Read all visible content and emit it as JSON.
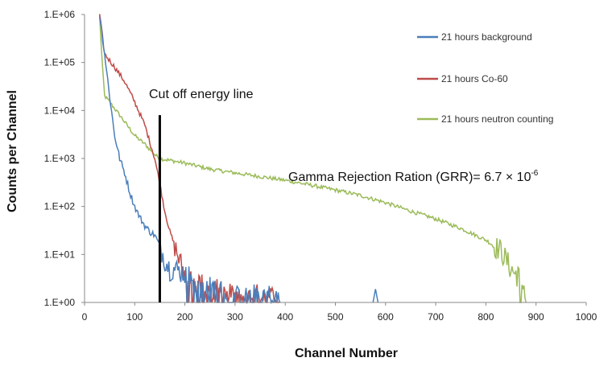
{
  "chart_data": {
    "type": "line",
    "title": "",
    "xlabel": "Channel Number",
    "ylabel": "Counts per Channel",
    "xlim": [
      0,
      1000
    ],
    "ylim_log10": [
      0,
      6
    ],
    "x_ticks": [
      "0",
      "100",
      "200",
      "300",
      "400",
      "500",
      "600",
      "700",
      "800",
      "900",
      "1000"
    ],
    "y_ticks": [
      "1.E+00",
      "1.E+01",
      "1.E+02",
      "1.E+03",
      "1.E+04",
      "1.E+05",
      "1.E+06"
    ],
    "grid": false,
    "legend_position": "top-right",
    "series": [
      {
        "name": "21 hours  background",
        "color": "#4a7ebb",
        "noise_log": 0.07,
        "points": [
          [
            30,
            1000000
          ],
          [
            40,
            150000
          ],
          [
            50,
            20000
          ],
          [
            60,
            3000
          ],
          [
            70,
            1000
          ],
          [
            80,
            500
          ],
          [
            90,
            200
          ],
          [
            100,
            100
          ],
          [
            110,
            60
          ],
          [
            120,
            40
          ],
          [
            130,
            30
          ],
          [
            140,
            25
          ],
          [
            150,
            15
          ],
          [
            160,
            8
          ],
          [
            170,
            5
          ],
          [
            180,
            5
          ],
          [
            200,
            4
          ],
          [
            220,
            3
          ],
          [
            240,
            2
          ],
          [
            260,
            2
          ],
          [
            280,
            1.5
          ],
          [
            300,
            1.3
          ],
          [
            320,
            1.2
          ],
          [
            340,
            1.4
          ],
          [
            360,
            1.5
          ],
          [
            380,
            1.2
          ],
          [
            390,
            1
          ]
        ]
      },
      {
        "name": "21 hours  Co-60",
        "color": "#be4b48",
        "noise_log": 0.05,
        "points": [
          [
            30,
            1000000
          ],
          [
            40,
            150000
          ],
          [
            60,
            80000
          ],
          [
            80,
            40000
          ],
          [
            100,
            15000
          ],
          [
            120,
            5000
          ],
          [
            140,
            1000
          ],
          [
            150,
            300
          ],
          [
            160,
            80
          ],
          [
            170,
            30
          ],
          [
            180,
            15
          ],
          [
            190,
            7
          ],
          [
            200,
            4
          ],
          [
            220,
            2.5
          ],
          [
            240,
            2
          ],
          [
            260,
            1.8
          ],
          [
            280,
            1.5
          ],
          [
            300,
            1.4
          ],
          [
            330,
            1.3
          ],
          [
            360,
            1.5
          ],
          [
            380,
            1.2
          ],
          [
            390,
            1
          ]
        ]
      },
      {
        "name": "21 hours  neutron counting",
        "color": "#9bbb59",
        "noise_log": 0.04,
        "points": [
          [
            30,
            1000000
          ],
          [
            35,
            100000
          ],
          [
            40,
            20000
          ],
          [
            50,
            15000
          ],
          [
            70,
            8000
          ],
          [
            100,
            3000
          ],
          [
            120,
            2000
          ],
          [
            140,
            1200
          ],
          [
            150,
            1000
          ],
          [
            200,
            800
          ],
          [
            250,
            600
          ],
          [
            300,
            500
          ],
          [
            350,
            420
          ],
          [
            400,
            350
          ],
          [
            450,
            280
          ],
          [
            500,
            220
          ],
          [
            550,
            170
          ],
          [
            600,
            120
          ],
          [
            650,
            80
          ],
          [
            700,
            55
          ],
          [
            750,
            35
          ],
          [
            800,
            20
          ],
          [
            830,
            12
          ],
          [
            850,
            5
          ],
          [
            870,
            3
          ],
          [
            880,
            1
          ]
        ]
      }
    ],
    "annotations": {
      "cutoff_label": "Cut off energy line",
      "cutoff_channel": 150,
      "grr_text": "Gamma Rejection Ration (GRR)= 6.7 × 10",
      "grr_exponent": "-6"
    }
  }
}
